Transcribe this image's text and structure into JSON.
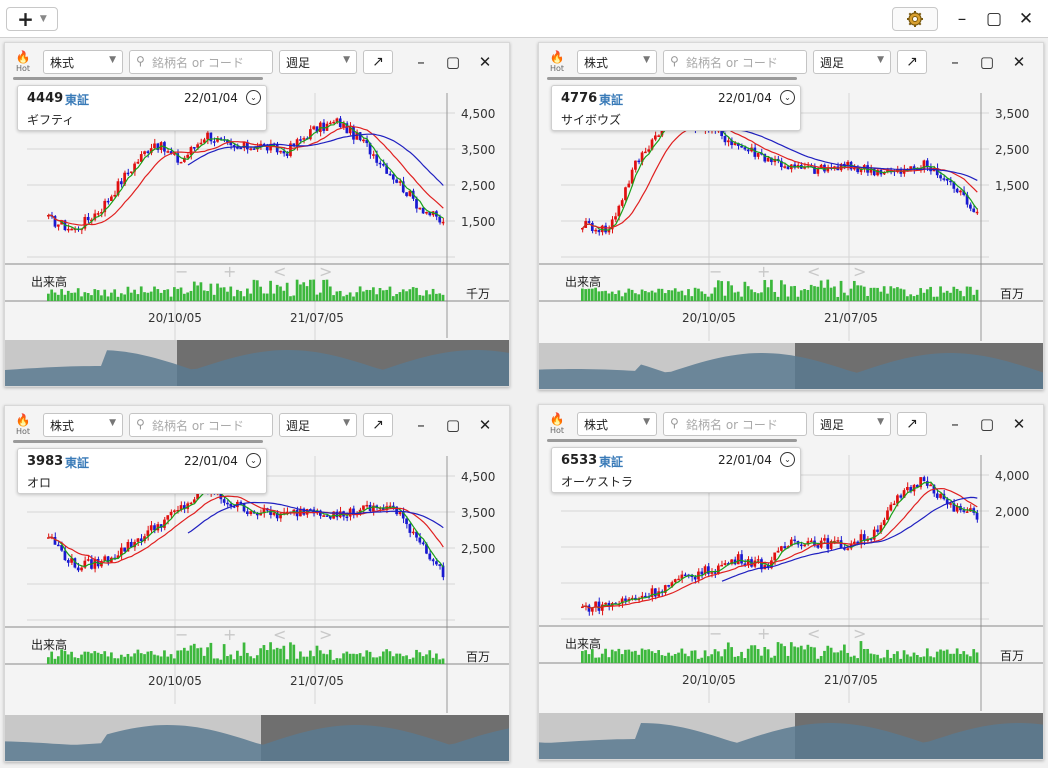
{
  "toolbar": {
    "add_label": "+",
    "add_chevron": "⌄"
  },
  "window_controls": {
    "minimize": "–",
    "maximize": "▢",
    "close": "✕"
  },
  "panel_common": {
    "hot_label": "Hot",
    "type_select": "株式",
    "search_placeholder": "銘柄名 or コード",
    "period_select": "週足",
    "volume_label": "出来高",
    "x_ticks": [
      "20/10/05",
      "21/07/05"
    ],
    "nav": {
      "minus": "−",
      "plus": "+",
      "prev": "<",
      "next": ">"
    }
  },
  "panels": [
    {
      "code": "4449",
      "exchange": "東証",
      "date": "22/01/04",
      "name": "ギフティ",
      "y_ticks": [
        "4,500",
        "3,500",
        "2,500",
        "1,500"
      ],
      "volume_unit": "千万"
    },
    {
      "code": "4776",
      "exchange": "東証",
      "date": "22/01/04",
      "name": "サイボウズ",
      "y_ticks": [
        "3,500",
        "2,500",
        "1,500"
      ],
      "volume_unit": "百万"
    },
    {
      "code": "3983",
      "exchange": "東証",
      "date": "22/01/04",
      "name": "オロ",
      "y_ticks": [
        "4,500",
        "3,500",
        "2,500"
      ],
      "volume_unit": "百万"
    },
    {
      "code": "6533",
      "exchange": "東証",
      "date": "22/01/04",
      "name": "オーケストラ",
      "y_ticks": [
        "4,000",
        "2,000"
      ],
      "volume_unit": "百万"
    }
  ],
  "colors": {
    "up": "#e01010",
    "down": "#1a1ad0",
    "ma_short": "#19a019",
    "ma_mid": "#e02020",
    "ma_long": "#2020c0",
    "volume": "#3cb83c",
    "overview": "#5a7a90"
  }
}
